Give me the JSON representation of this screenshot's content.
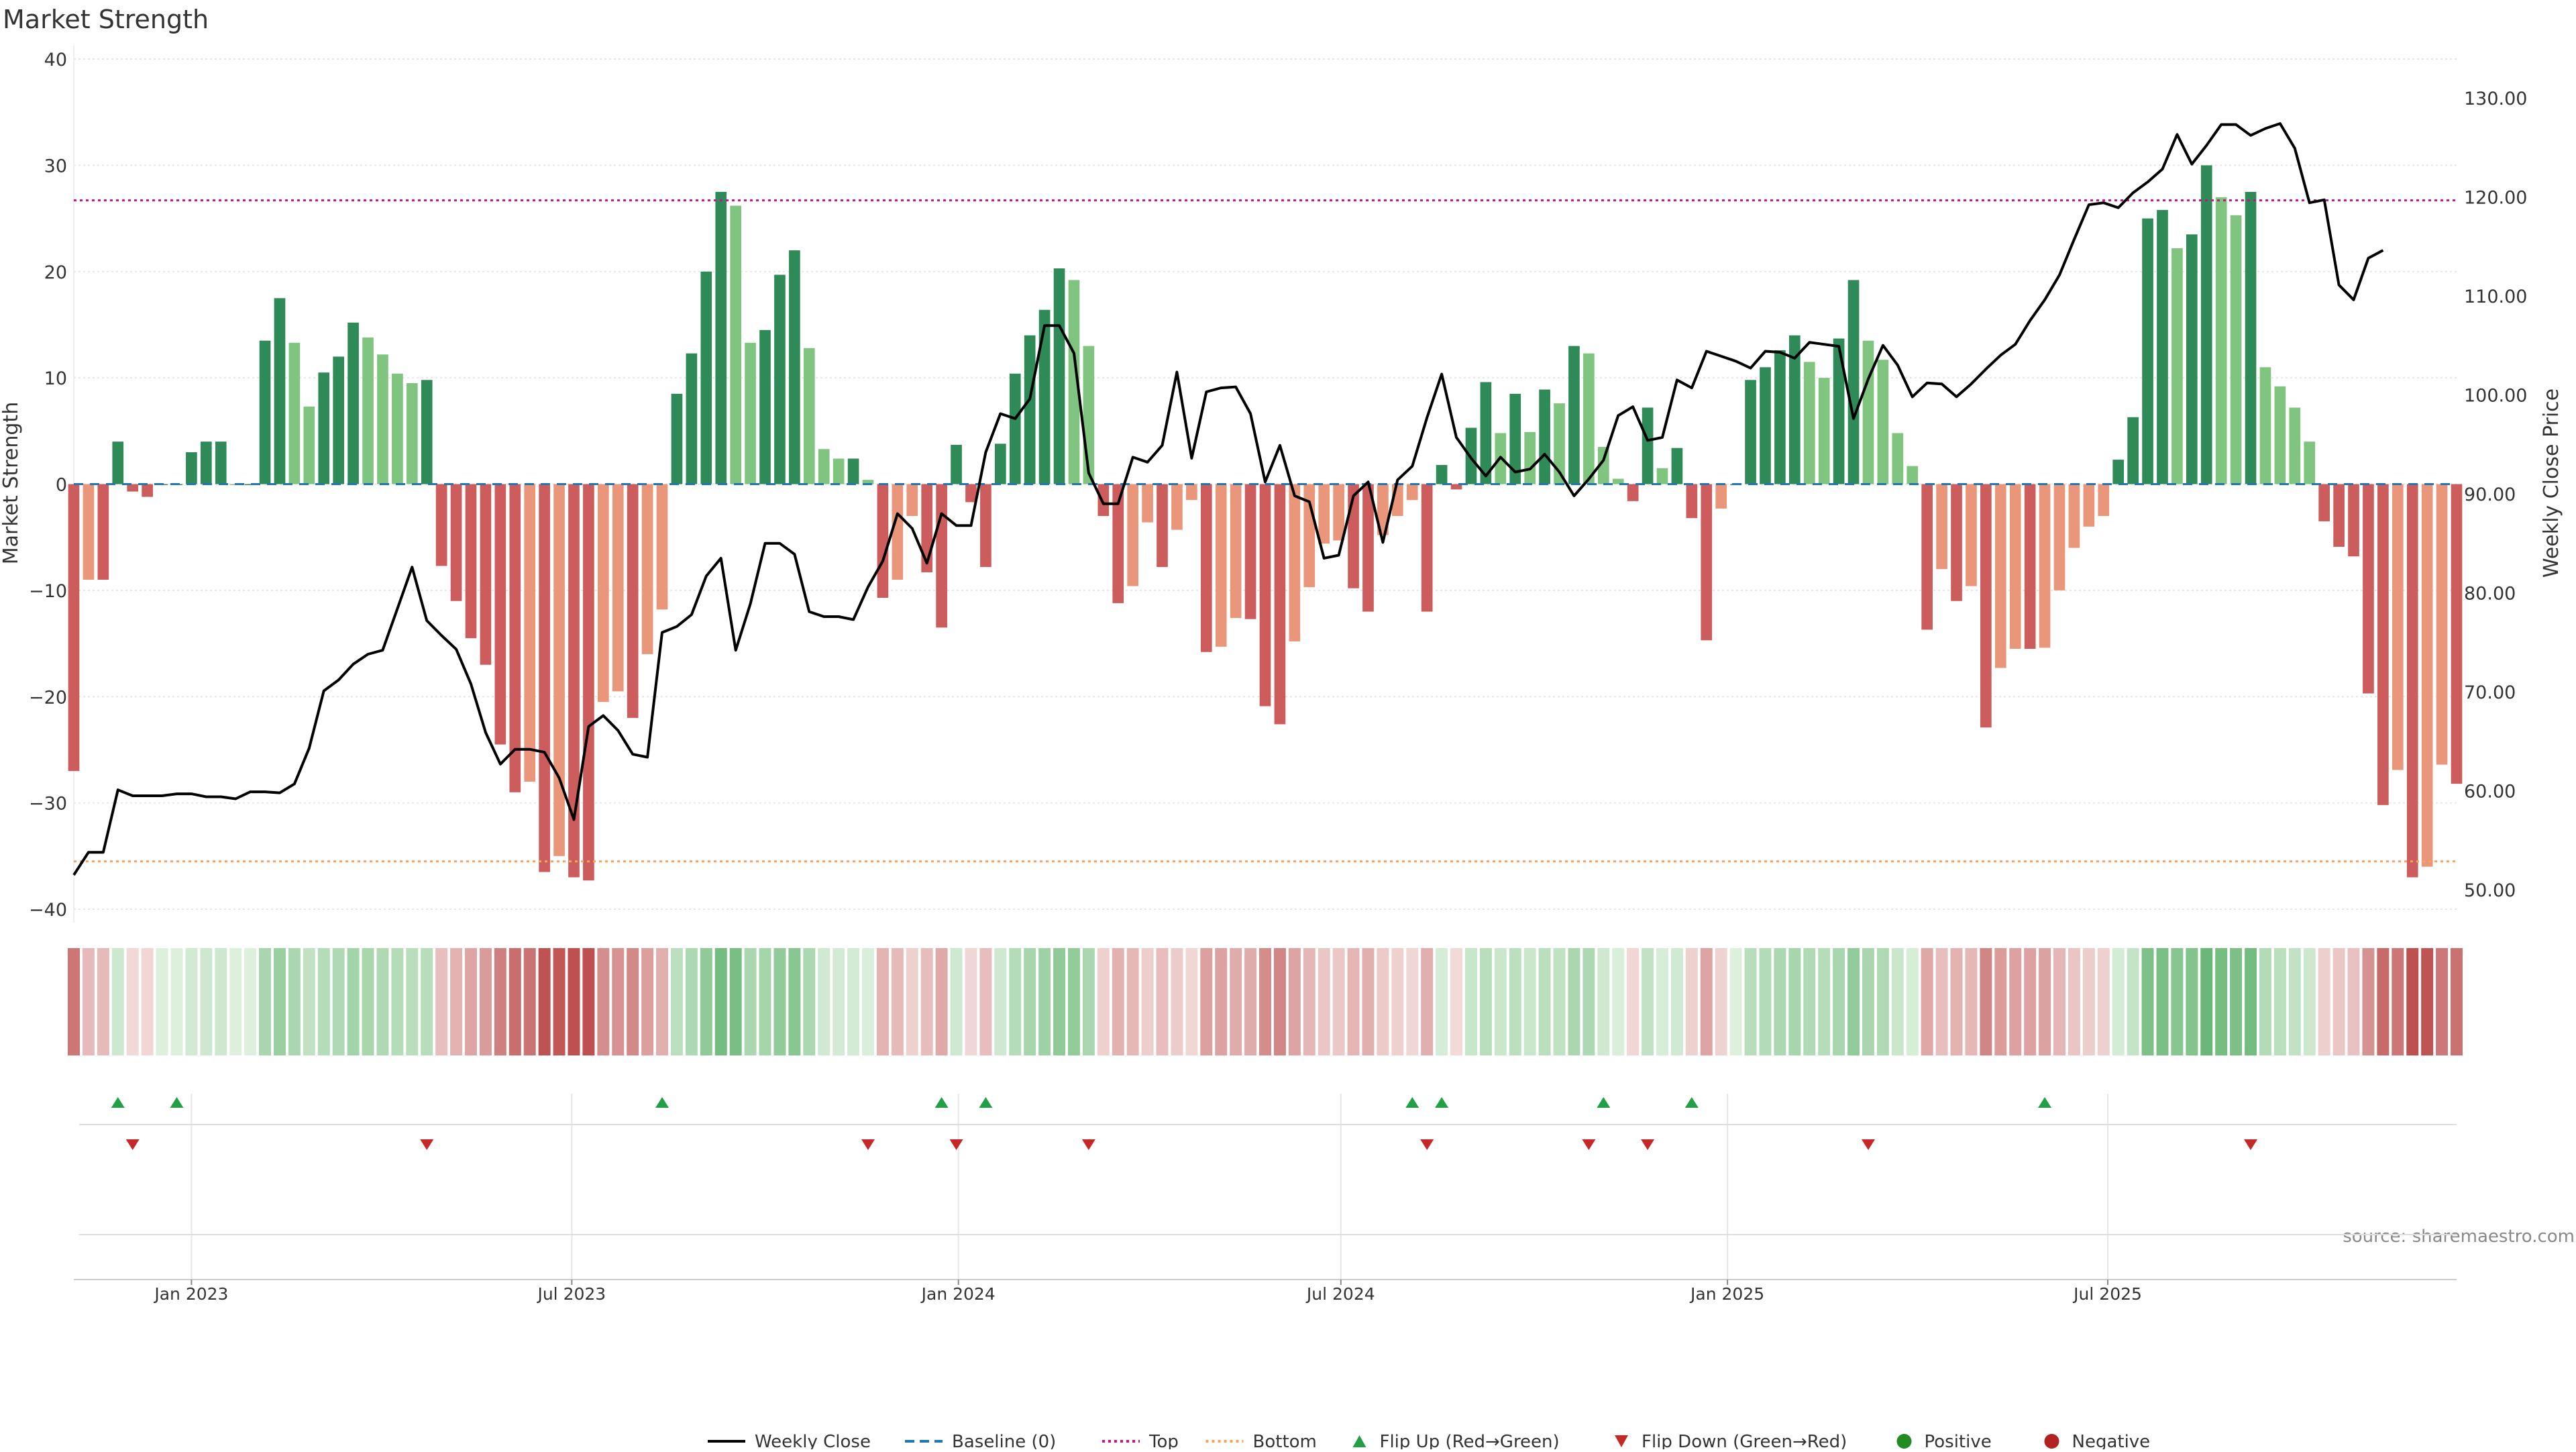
{
  "colors": {
    "strong_green": "#2e8b57",
    "light_green": "#7fc47f",
    "strong_red": "#cd5c5c",
    "light_red": "#e9967a",
    "baseline": "#1f77b4",
    "top_line": "#c71585",
    "bottom_line": "#f4a460",
    "price_line": "#000000",
    "flip_up": "#22a046",
    "flip_down": "#c62828",
    "positive_dot": "#228b22",
    "negative_dot": "#b22222"
  },
  "chart_data": {
    "type": "bar",
    "title": "Market Strength",
    "ylabel_left": "Market Strength",
    "ylabel_right": "Weekly Close Price",
    "source_note": "source: sharemaestro.com",
    "ylim_left": [
      -40,
      40
    ],
    "ylim_right": [
      45,
      135
    ],
    "yticks_left": [
      "40",
      "30",
      "20",
      "10",
      "0",
      "−10",
      "−20",
      "−30",
      "−40"
    ],
    "yticks_right": [
      "130.00",
      "120.00",
      "110.00",
      "100.00",
      "90.00",
      "80.00",
      "70.00",
      "60.00",
      "50.00"
    ],
    "x_start": "2022-11-06",
    "x_step_days": 7,
    "xticks": [
      {
        "label": "Jan 2023",
        "date": "2023-01-01"
      },
      {
        "label": "Jul 2023",
        "date": "2023-07-01"
      },
      {
        "label": "Jan 2024",
        "date": "2024-01-01"
      },
      {
        "label": "Jul 2024",
        "date": "2024-07-01"
      },
      {
        "label": "Jan 2025",
        "date": "2025-01-01"
      },
      {
        "label": "Jul 2025",
        "date": "2025-07-01"
      }
    ],
    "top_level": 26.7,
    "bottom_level": -35.5,
    "strength": [
      -27,
      -9,
      -9,
      4,
      -0.7,
      -1.2,
      0,
      0,
      3,
      4,
      4,
      0,
      0,
      13.5,
      17.5,
      13.3,
      7.3,
      10.5,
      12,
      15.2,
      13.8,
      12.2,
      10.4,
      9.5,
      9.8,
      -7.7,
      -11,
      -14.5,
      -17,
      -24.5,
      -29,
      -28,
      -36.5,
      -35,
      -37,
      -37.3,
      -20.5,
      -19.5,
      -22,
      -16,
      -11.8,
      8.5,
      12.3,
      20,
      27.5,
      26.2,
      13.3,
      14.5,
      19.7,
      22,
      12.8,
      3.3,
      2.4,
      2.4,
      0.4,
      -10.7,
      -9,
      -3,
      -8.3,
      -13.5,
      3.7,
      -1.7,
      -7.8,
      3.8,
      10.4,
      14,
      16.4,
      20.3,
      19.2,
      13,
      -3,
      -11.2,
      -9.6,
      -3.6,
      -7.8,
      -4.3,
      -1.5,
      -15.8,
      -15.3,
      -12.6,
      -12.7,
      -20.9,
      -22.6,
      -14.8,
      -9.7,
      -5.6,
      -5.3,
      -9.8,
      -12,
      -4.8,
      -3,
      -1.5,
      -12,
      1.8,
      -0.5,
      5.3,
      9.6,
      4.8,
      8.5,
      4.9,
      8.9,
      7.6,
      13,
      12.3,
      3.5,
      0.5,
      -1.6,
      7.2,
      1.5,
      3.4,
      -3.2,
      -14.7,
      -2.3,
      0,
      9.8,
      11,
      12.6,
      14,
      11.5,
      10,
      13.7,
      19.2,
      13.5,
      11.7,
      4.8,
      1.7,
      -13.7,
      -8,
      -11,
      -9.6,
      -22.9,
      -17.3,
      -15.5,
      -15.5,
      -15.4,
      -10,
      -6,
      -4,
      -3,
      2.3,
      6.3,
      25,
      25.8,
      22.2,
      23.5,
      30,
      27,
      25.3,
      27.5,
      11,
      9.2,
      7.2,
      4,
      -3.5,
      -5.9,
      -6.8,
      -19.7,
      -30.2,
      -26.9,
      -37,
      -36,
      -26.4,
      -28.2
    ],
    "price": [
      51.5,
      53.8,
      53.8,
      60.1,
      59.5,
      59.5,
      59.5,
      59.7,
      59.7,
      59.4,
      59.4,
      59.2,
      59.9,
      59.9,
      59.8,
      60.7,
      64.3,
      70.1,
      71.2,
      72.8,
      73.8,
      74.2,
      78.4,
      82.6,
      77.2,
      75.7,
      74.3,
      70.8,
      65.9,
      62.7,
      64.2,
      64.2,
      63.9,
      61.3,
      57.1,
      66.5,
      67.6,
      66.1,
      63.7,
      63.4,
      76,
      76.6,
      77.8,
      81.7,
      83.5,
      74.2,
      78.9,
      85,
      85,
      83.9,
      78.1,
      77.6,
      77.6,
      77.3,
      80.6,
      83.2,
      88,
      86.5,
      83,
      88,
      86.8,
      86.8,
      94.2,
      98.1,
      97.6,
      99.6,
      107,
      107,
      104.2,
      92.1,
      89,
      89,
      93.7,
      93.2,
      94.9,
      102.3,
      93.6,
      100.3,
      100.7,
      100.8,
      98.1,
      91.2,
      94.9,
      89.8,
      89.2,
      83.5,
      83.8,
      89.8,
      91.2,
      85.1,
      91.4,
      92.8,
      97.7,
      102.1,
      95.7,
      93.6,
      91.8,
      93.7,
      92.2,
      92.5,
      94,
      92.2,
      89.8,
      91.5,
      93.4,
      97.9,
      98.8,
      95.4,
      95.7,
      101.5,
      100.7,
      104.4,
      103.9,
      103.4,
      102.7,
      104.4,
      104.3,
      103.7,
      105.3,
      105.1,
      104.9,
      97.6,
      101.6,
      105,
      103,
      99.8,
      101.2,
      101.1,
      99.8,
      101.1,
      102.6,
      104,
      105.1,
      107.5,
      109.6,
      112.1,
      115.7,
      119.2,
      119.4,
      118.9,
      120.4,
      121.5,
      122.8,
      126.3,
      123.3,
      125.2,
      127.3,
      127.3,
      126.2,
      126.9,
      127.4,
      124.9,
      119.4,
      119.7,
      111.1,
      109.6,
      113.8,
      114.6
    ],
    "flip_up_indices": [
      3,
      7,
      40,
      59,
      62,
      91,
      93,
      104,
      110,
      134
    ],
    "flip_down_indices": [
      4,
      24,
      54,
      60,
      69,
      92,
      103,
      107,
      122,
      148
    ],
    "legend": [
      {
        "key": "price_line",
        "label": "Weekly Close",
        "symbol": "solid-line"
      },
      {
        "key": "baseline",
        "label": "Baseline (0)",
        "symbol": "dash-line"
      },
      {
        "key": "top_line",
        "label": "Top",
        "symbol": "dotted-line"
      },
      {
        "key": "bottom_line",
        "label": "Bottom",
        "symbol": "dotted-line"
      },
      {
        "key": "flip_up",
        "label": "Flip Up (Red→Green)",
        "symbol": "triangle-up"
      },
      {
        "key": "flip_down",
        "label": "Flip Down (Green→Red)",
        "symbol": "triangle-down"
      },
      {
        "key": "positive_dot",
        "label": "Positive",
        "symbol": "dot"
      },
      {
        "key": "negative_dot",
        "label": "Negative",
        "symbol": "dot"
      }
    ]
  }
}
